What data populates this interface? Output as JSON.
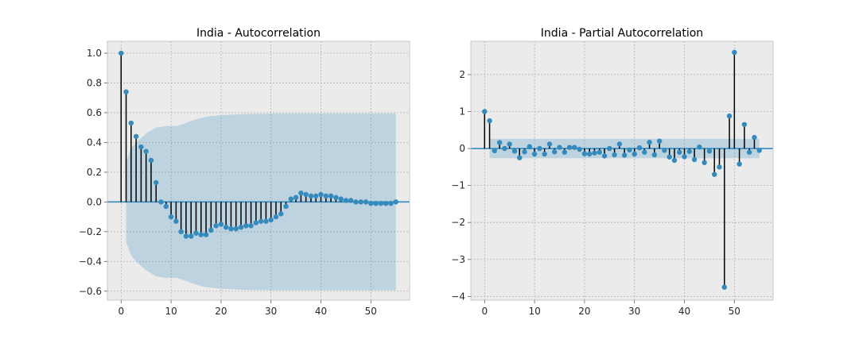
{
  "chart_data": [
    {
      "type": "stem",
      "title": "India - Autocorrelation",
      "xlim": [
        -2.75,
        57.75
      ],
      "ylim": [
        -0.66,
        1.08
      ],
      "xticks": [
        0,
        10,
        20,
        30,
        40,
        50
      ],
      "yticks": [
        -0.6,
        -0.4,
        -0.2,
        0.0,
        0.2,
        0.4,
        0.6,
        0.8,
        1.0
      ],
      "ytick_labels": [
        "−0.6",
        "−0.4",
        "−0.2",
        "0.0",
        "0.2",
        "0.4",
        "0.6",
        "0.8",
        "1.0"
      ],
      "grid": true,
      "x": [
        0,
        1,
        2,
        3,
        4,
        5,
        6,
        7,
        8,
        9,
        10,
        11,
        12,
        13,
        14,
        15,
        16,
        17,
        18,
        19,
        20,
        21,
        22,
        23,
        24,
        25,
        26,
        27,
        28,
        29,
        30,
        31,
        32,
        33,
        34,
        35,
        36,
        37,
        38,
        39,
        40,
        41,
        42,
        43,
        44,
        45,
        46,
        47,
        48,
        49,
        50,
        51,
        52,
        53,
        54,
        55
      ],
      "values": [
        1.0,
        0.74,
        0.53,
        0.44,
        0.37,
        0.34,
        0.28,
        0.13,
        0.0,
        -0.03,
        -0.1,
        -0.13,
        -0.2,
        -0.23,
        -0.23,
        -0.21,
        -0.22,
        -0.22,
        -0.19,
        -0.16,
        -0.15,
        -0.17,
        -0.18,
        -0.18,
        -0.17,
        -0.16,
        -0.16,
        -0.14,
        -0.13,
        -0.13,
        -0.12,
        -0.1,
        -0.08,
        -0.03,
        0.02,
        0.03,
        0.06,
        0.05,
        0.04,
        0.04,
        0.05,
        0.04,
        0.04,
        0.03,
        0.02,
        0.01,
        0.01,
        0.0,
        0.0,
        0.0,
        -0.01,
        -0.01,
        -0.01,
        -0.01,
        -0.01,
        0.0
      ],
      "confidence_band": {
        "x": [
          1,
          2,
          3,
          4,
          5,
          6,
          7,
          8,
          9,
          10,
          11,
          12,
          13,
          14,
          15,
          16,
          17,
          18,
          19,
          20,
          21,
          22,
          23,
          24,
          25,
          26,
          27,
          28,
          29,
          30,
          31,
          32,
          33,
          34,
          35,
          36,
          37,
          38,
          39,
          40,
          41,
          42,
          43,
          44,
          45,
          46,
          47,
          48,
          49,
          50,
          51,
          52,
          53,
          54,
          55
        ],
        "upper": [
          0.27,
          0.36,
          0.4,
          0.43,
          0.46,
          0.48,
          0.5,
          0.505,
          0.51,
          0.51,
          0.51,
          0.52,
          0.53,
          0.545,
          0.555,
          0.565,
          0.572,
          0.577,
          0.58,
          0.583,
          0.585,
          0.587,
          0.589,
          0.59,
          0.591,
          0.592,
          0.592,
          0.593,
          0.593,
          0.594,
          0.594,
          0.594,
          0.594,
          0.594,
          0.594,
          0.594,
          0.594,
          0.594,
          0.594,
          0.594,
          0.594,
          0.594,
          0.594,
          0.594,
          0.594,
          0.594,
          0.594,
          0.594,
          0.594,
          0.594,
          0.594,
          0.594,
          0.594,
          0.594,
          0.594
        ]
      }
    },
    {
      "type": "stem",
      "title": "India - Partial Autocorrelation",
      "xlim": [
        -2.75,
        57.75
      ],
      "ylim": [
        -4.1,
        2.9
      ],
      "xticks": [
        0,
        10,
        20,
        30,
        40,
        50
      ],
      "yticks": [
        -4,
        -3,
        -2,
        -1,
        0,
        1,
        2
      ],
      "ytick_labels": [
        "−4",
        "−3",
        "−2",
        "−1",
        "0",
        "1",
        "2"
      ],
      "grid": true,
      "x": [
        0,
        1,
        2,
        3,
        4,
        5,
        6,
        7,
        8,
        9,
        10,
        11,
        12,
        13,
        14,
        15,
        16,
        17,
        18,
        19,
        20,
        21,
        22,
        23,
        24,
        25,
        26,
        27,
        28,
        29,
        30,
        31,
        32,
        33,
        34,
        35,
        36,
        37,
        38,
        39,
        40,
        41,
        42,
        43,
        44,
        45,
        46,
        47,
        48,
        49,
        50,
        51,
        52,
        53,
        54,
        55
      ],
      "values": [
        1.0,
        0.75,
        -0.06,
        0.16,
        0.0,
        0.12,
        -0.07,
        -0.25,
        -0.09,
        0.05,
        -0.15,
        0.0,
        -0.15,
        0.12,
        -0.09,
        0.03,
        -0.1,
        0.03,
        0.03,
        -0.02,
        -0.14,
        -0.15,
        -0.12,
        -0.1,
        -0.2,
        0.0,
        -0.17,
        0.12,
        -0.18,
        -0.04,
        -0.15,
        0.02,
        -0.1,
        0.17,
        -0.17,
        0.2,
        -0.05,
        -0.23,
        -0.32,
        -0.1,
        -0.22,
        -0.08,
        -0.3,
        0.04,
        -0.38,
        -0.07,
        -0.7,
        -0.5,
        -3.75,
        0.88,
        2.6,
        -0.42,
        0.65,
        -0.1,
        0.3,
        -0.05
      ],
      "confidence_band": {
        "x": [
          1,
          55
        ],
        "upper": [
          0.26,
          0.26
        ]
      }
    }
  ]
}
